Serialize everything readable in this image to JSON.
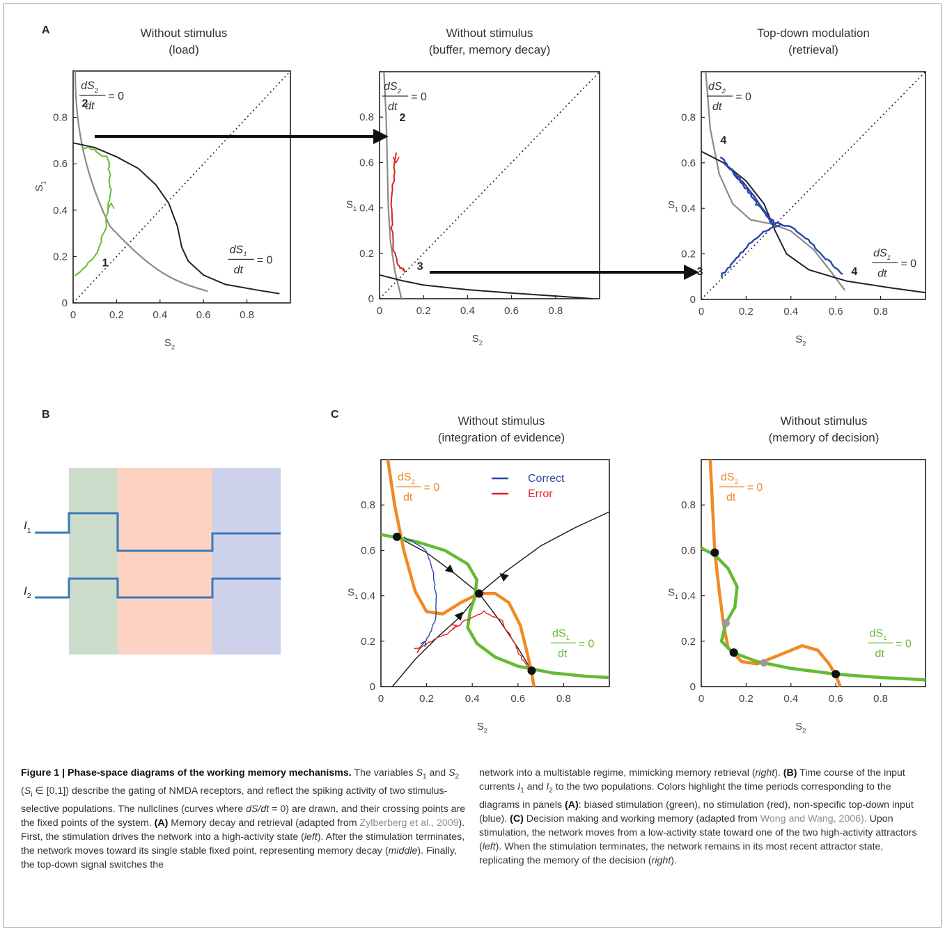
{
  "panels": {
    "A": {
      "letter": "A",
      "plots": [
        {
          "title": [
            "Without stimulus",
            "(load)"
          ],
          "trajectory_color": "#66bb33",
          "labels": [
            "1",
            "2"
          ]
        },
        {
          "title": [
            "Without stimulus",
            "(buffer, memory decay)"
          ],
          "trajectory_color": "#e0201e",
          "labels": [
            "2",
            "3"
          ]
        },
        {
          "title": [
            "Top-down modulation",
            "(retrieval)"
          ],
          "trajectory_color": "#2a44aa",
          "labels": [
            "3",
            "4",
            "4"
          ]
        }
      ],
      "nullcline_s2": "dS2/dt = 0",
      "nullcline_s1": "dS1/dt = 0",
      "xlabel": "S2",
      "ylabel": "S1",
      "xticks": [
        "0",
        "0.2",
        "0.4",
        "0.6",
        "0.8"
      ],
      "yticks": [
        "0",
        "0.2",
        "0.4",
        "0.6",
        "0.8"
      ]
    },
    "B": {
      "letter": "B",
      "inputs": [
        "I1",
        "I2"
      ],
      "periods": [
        {
          "name": "biased stimulation",
          "color": "#ccdccb"
        },
        {
          "name": "no stimulation",
          "color": "#fcd2c3"
        },
        {
          "name": "non-specific top-down input",
          "color": "#cdd1ea"
        }
      ],
      "trace_color": "#3a7ab8"
    },
    "C": {
      "letter": "C",
      "plots": [
        {
          "title": [
            "Without stimulus",
            "(integration of evidence)"
          ]
        },
        {
          "title": [
            "Without stimulus",
            "(memory of decision)"
          ]
        }
      ],
      "legend": [
        {
          "label": "Correct",
          "color": "#2a44aa"
        },
        {
          "label": "Error",
          "color": "#e0201e"
        }
      ],
      "nullcline_s2_color": "#f08a24",
      "nullcline_s1_color": "#66bb33",
      "xlabel": "S2",
      "ylabel": "S1",
      "xticks": [
        "0",
        "0.2",
        "0.4",
        "0.6",
        "0.8"
      ],
      "yticks": [
        "0",
        "0.2",
        "0.4",
        "0.6",
        "0.8"
      ]
    }
  },
  "caption": {
    "left": [
      {
        "b": "Figure 1 | Phase-space diagrams of the working memory mechanisms."
      },
      {
        "t": " The variables "
      },
      {
        "i": "S"
      },
      {
        "sub": "1"
      },
      {
        "t": " and "
      },
      {
        "i": "S"
      },
      {
        "sub": "2"
      },
      {
        "t": " ("
      },
      {
        "i": "S"
      },
      {
        "sub": "i"
      },
      {
        "t": " ∈ [0,1]) describe the gating of NMDA receptors, and reflect the spiking activity of two stimulus-selective populations. The nullclines (curves where "
      },
      {
        "i": "dS/dt"
      },
      {
        "t": " = 0) are drawn, and their crossing points are the fixed points of the system. "
      },
      {
        "b": "(A)"
      },
      {
        "t": " Memory decay and retrieval (adapted from "
      },
      {
        "ref": "Zylberberg et al., 2009"
      },
      {
        "t": "). First, the stimulation drives the network into a high-activity state ("
      },
      {
        "i": "left"
      },
      {
        "t": "). After the stimulation terminates, the network moves toward its single stable fixed point, representing memory decay ("
      },
      {
        "i": "middle"
      },
      {
        "t": "). Finally, the top-down signal switches the"
      }
    ],
    "right": [
      {
        "t": "network into a multistable regime, mimicking memory retrieval ("
      },
      {
        "i": "right"
      },
      {
        "t": "). "
      },
      {
        "b": "(B)"
      },
      {
        "t": " Time course of the input currents "
      },
      {
        "i": "I"
      },
      {
        "sub": "1"
      },
      {
        "t": " and "
      },
      {
        "i": "I"
      },
      {
        "sub": "2"
      },
      {
        "t": " to the two populations. Colors highlight the time periods corresponding to the diagrams in panels "
      },
      {
        "b": "(A)"
      },
      {
        "t": ": biased stimulation (green), no stimulation (red), non-specific top-down input (blue). "
      },
      {
        "b": "(C)"
      },
      {
        "t": " Decision making and working memory (adapted from "
      },
      {
        "ref": "Wong and Wang, 2006)."
      },
      {
        "t": " Upon stimulation, the network moves from a low-activity state toward one of the two high-activity attractors ("
      },
      {
        "i": "left"
      },
      {
        "t": "). When the stimulation terminates, the network remains in its most recent attractor state, replicating the memory of the decision ("
      },
      {
        "i": "right"
      },
      {
        "t": ")."
      }
    ]
  }
}
